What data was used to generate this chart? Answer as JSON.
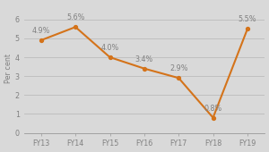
{
  "categories": [
    "FY13",
    "FY14",
    "FY15",
    "FY16",
    "FY17",
    "FY18",
    "FY19"
  ],
  "values": [
    4.9,
    5.6,
    4.0,
    3.4,
    2.9,
    0.8,
    5.5
  ],
  "labels": [
    "4.9%",
    "5.6%",
    "4.0%",
    "3.4%",
    "2.9%",
    "0.8%",
    "5.5%"
  ],
  "line_color": "#D4731A",
  "marker_color": "#D4731A",
  "background_color": "#D9D9D9",
  "plot_bg_color": "#D9D9D9",
  "ylabel": "Per cent",
  "ylim": [
    0,
    6.8
  ],
  "yticks": [
    0,
    1,
    2,
    3,
    4,
    5,
    6
  ],
  "grid_color": "#C0C0C0",
  "label_color": "#808080",
  "axis_color": "#999999",
  "label_fontsize": 5.8,
  "tick_fontsize": 5.8,
  "label_offsets": [
    0.28,
    0.28,
    0.28,
    0.28,
    0.28,
    0.28,
    0.28
  ]
}
